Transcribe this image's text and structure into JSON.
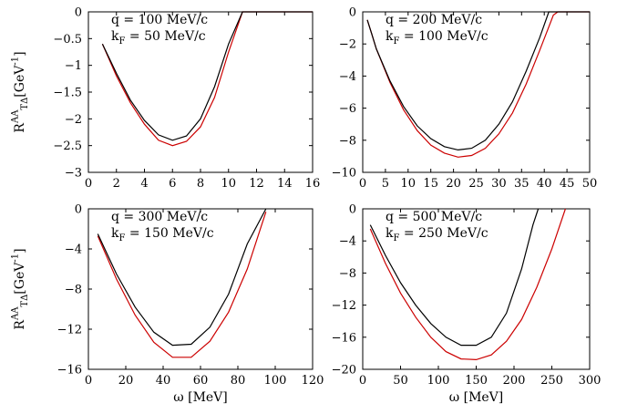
{
  "chart_data": [
    {
      "type": "line",
      "annotation_q": "q = 100 MeV/c",
      "annotation_kf": "k_F = 50 MeV/c",
      "ylabel": "R^{AA}_{TΔ}[GeV^{-1}]",
      "xlabel": "",
      "xlim": [
        0,
        16
      ],
      "ylim": [
        -3,
        0
      ],
      "xticks": [
        0,
        2,
        4,
        6,
        8,
        10,
        12,
        14,
        16
      ],
      "yticks": [
        0,
        -0.5,
        -1,
        -1.5,
        -2,
        -2.5,
        -3
      ],
      "series": [
        {
          "color": "#000000",
          "x": [
            1,
            2,
            3,
            4,
            5,
            6,
            7,
            8,
            9,
            10,
            11,
            12,
            16
          ],
          "y": [
            -0.6,
            -1.15,
            -1.65,
            -2.03,
            -2.3,
            -2.4,
            -2.32,
            -2.0,
            -1.4,
            -0.6,
            0,
            0,
            0
          ]
        },
        {
          "color": "#cc0000",
          "x": [
            1,
            2,
            3,
            4,
            5,
            6,
            7,
            8,
            9,
            10,
            11,
            12,
            16
          ],
          "y": [
            -0.6,
            -1.2,
            -1.7,
            -2.1,
            -2.4,
            -2.5,
            -2.42,
            -2.15,
            -1.6,
            -0.75,
            0,
            0,
            0
          ]
        }
      ]
    },
    {
      "type": "line",
      "annotation_q": "q = 200 MeV/c",
      "annotation_kf": "k_F = 100 MeV/c",
      "ylabel": "",
      "xlabel": "",
      "xlim": [
        0,
        50
      ],
      "ylim": [
        -10,
        0
      ],
      "xticks": [
        0,
        5,
        10,
        15,
        20,
        25,
        30,
        35,
        40,
        45,
        50
      ],
      "yticks": [
        0,
        -2,
        -4,
        -6,
        -8,
        -10
      ],
      "series": [
        {
          "color": "#000000",
          "x": [
            1,
            2,
            3,
            6,
            9,
            12,
            15,
            18,
            21,
            24,
            27,
            30,
            33,
            36,
            39,
            41,
            42,
            50
          ],
          "y": [
            -0.5,
            -1.4,
            -2.3,
            -4.3,
            -5.9,
            -7.1,
            -7.9,
            -8.4,
            -8.6,
            -8.5,
            -8.0,
            -7.0,
            -5.6,
            -3.7,
            -1.6,
            0,
            0,
            0
          ]
        },
        {
          "color": "#cc0000",
          "x": [
            1,
            2,
            3,
            6,
            9,
            12,
            15,
            18,
            21,
            24,
            27,
            30,
            33,
            36,
            39,
            42,
            43,
            50
          ],
          "y": [
            -0.5,
            -1.4,
            -2.3,
            -4.4,
            -6.1,
            -7.4,
            -8.3,
            -8.8,
            -9.05,
            -8.95,
            -8.5,
            -7.6,
            -6.3,
            -4.5,
            -2.4,
            -0.2,
            0,
            0
          ]
        }
      ]
    },
    {
      "type": "line",
      "annotation_q": "q = 300 MeV/c",
      "annotation_kf": "k_F = 150 MeV/c",
      "ylabel": "R^{AA}_{TΔ}[GeV^{-1}]",
      "xlabel": "ω [MeV]",
      "xlim": [
        0,
        120
      ],
      "ylim": [
        -16,
        0
      ],
      "xticks": [
        0,
        20,
        40,
        60,
        80,
        100,
        120
      ],
      "yticks": [
        0,
        -4,
        -8,
        -12,
        -16
      ],
      "series": [
        {
          "color": "#000000",
          "x": [
            5,
            15,
            25,
            35,
            45,
            55,
            65,
            75,
            85,
            95
          ],
          "y": [
            -2.5,
            -6.5,
            -9.8,
            -12.3,
            -13.6,
            -13.5,
            -11.8,
            -8.5,
            -3.5,
            0
          ]
        },
        {
          "color": "#cc0000",
          "x": [
            5,
            15,
            25,
            35,
            45,
            55,
            65,
            75,
            85,
            95
          ],
          "y": [
            -2.7,
            -7.0,
            -10.6,
            -13.3,
            -14.8,
            -14.8,
            -13.2,
            -10.3,
            -6.0,
            -0.3
          ]
        }
      ]
    },
    {
      "type": "line",
      "annotation_q": "q = 500 MeV/c",
      "annotation_kf": "k_F = 250 MeV/c",
      "ylabel": "",
      "xlabel": "ω [MeV]",
      "xlim": [
        0,
        300
      ],
      "ylim": [
        -20,
        0
      ],
      "xticks": [
        0,
        50,
        100,
        150,
        200,
        250,
        300
      ],
      "yticks": [
        0,
        -4,
        -8,
        -12,
        -16,
        -20
      ],
      "series": [
        {
          "color": "#000000",
          "x": [
            10,
            30,
            50,
            70,
            90,
            110,
            130,
            150,
            170,
            190,
            210,
            225,
            232
          ],
          "y": [
            -2.0,
            -5.8,
            -9.2,
            -12.0,
            -14.3,
            -16.0,
            -17.0,
            -17.0,
            -16.0,
            -13.0,
            -7.5,
            -2.0,
            0
          ]
        },
        {
          "color": "#cc0000",
          "x": [
            10,
            30,
            50,
            70,
            90,
            110,
            130,
            150,
            170,
            190,
            210,
            230,
            250,
            268
          ],
          "y": [
            -2.5,
            -6.8,
            -10.5,
            -13.5,
            -16.0,
            -17.8,
            -18.7,
            -18.8,
            -18.2,
            -16.5,
            -13.8,
            -9.8,
            -5.0,
            0
          ]
        }
      ]
    }
  ]
}
